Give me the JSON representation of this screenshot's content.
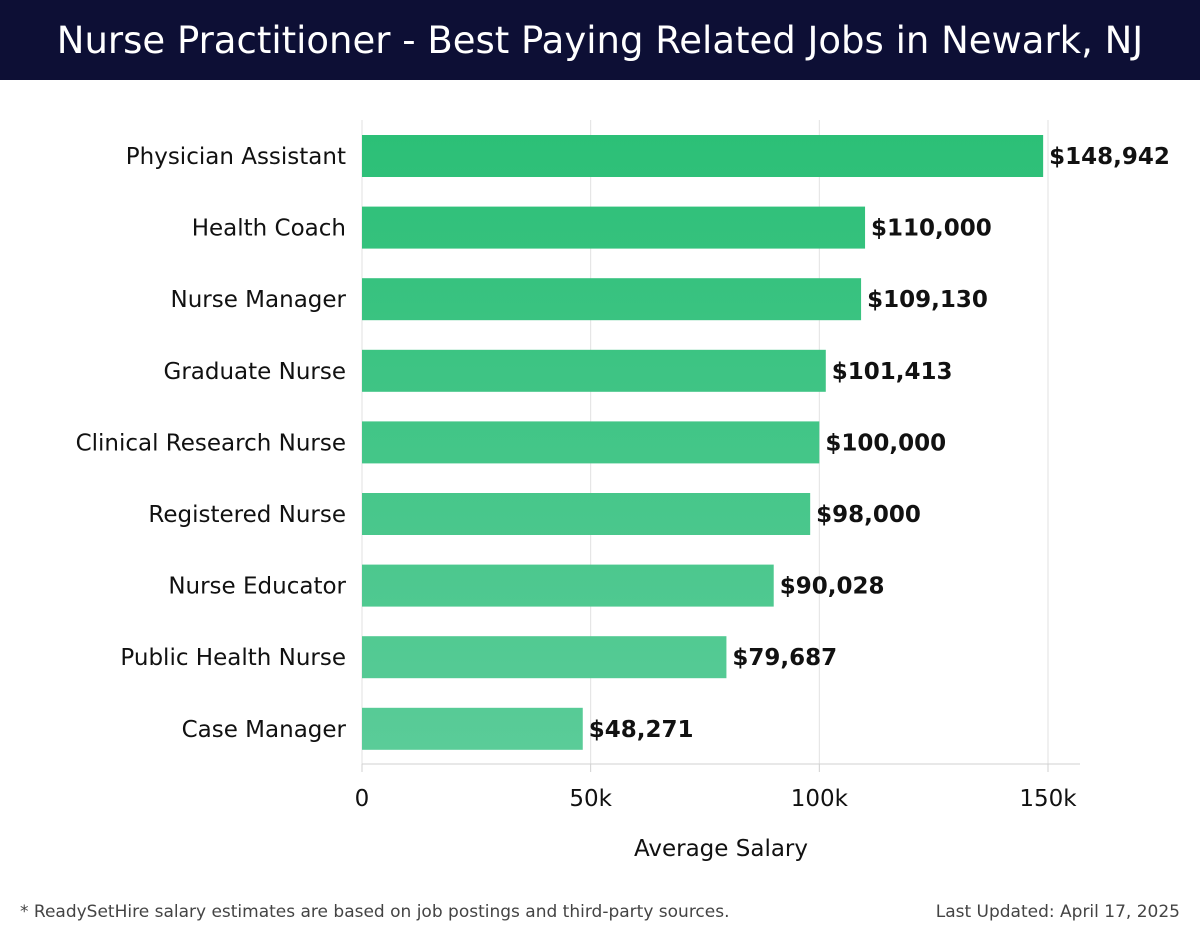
{
  "header": {
    "title": "Nurse Practitioner - Best Paying Related Jobs in Newark, NJ"
  },
  "footer": {
    "note": "* ReadySetHire salary estimates are based on job postings and third-party sources.",
    "updated": "Last Updated: April 17, 2025"
  },
  "colors": {
    "header_bg": "#0d0f35",
    "bar_top": "#2bbf76",
    "bar_bottom": "#5bcc99",
    "grid": "#e2e2e2"
  },
  "chart_data": {
    "type": "bar",
    "orientation": "horizontal",
    "title": "Nurse Practitioner - Best Paying Related Jobs in Newark, NJ",
    "xlabel": "Average Salary",
    "ylabel": "",
    "xlim": [
      0,
      157000
    ],
    "xticks": [
      0,
      50000,
      100000,
      150000
    ],
    "xtick_labels": [
      "0",
      "50k",
      "100k",
      "150k"
    ],
    "grid": true,
    "categories": [
      "Physician Assistant",
      "Health Coach",
      "Nurse Manager",
      "Graduate Nurse",
      "Clinical Research Nurse",
      "Registered Nurse",
      "Nurse Educator",
      "Public Health Nurse",
      "Case Manager"
    ],
    "values": [
      148942,
      110000,
      109130,
      101413,
      100000,
      98000,
      90028,
      79687,
      48271
    ],
    "value_labels": [
      "$148,942",
      "$110,000",
      "$109,130",
      "$101,413",
      "$100,000",
      "$98,000",
      "$90,028",
      "$79,687",
      "$48,271"
    ]
  }
}
